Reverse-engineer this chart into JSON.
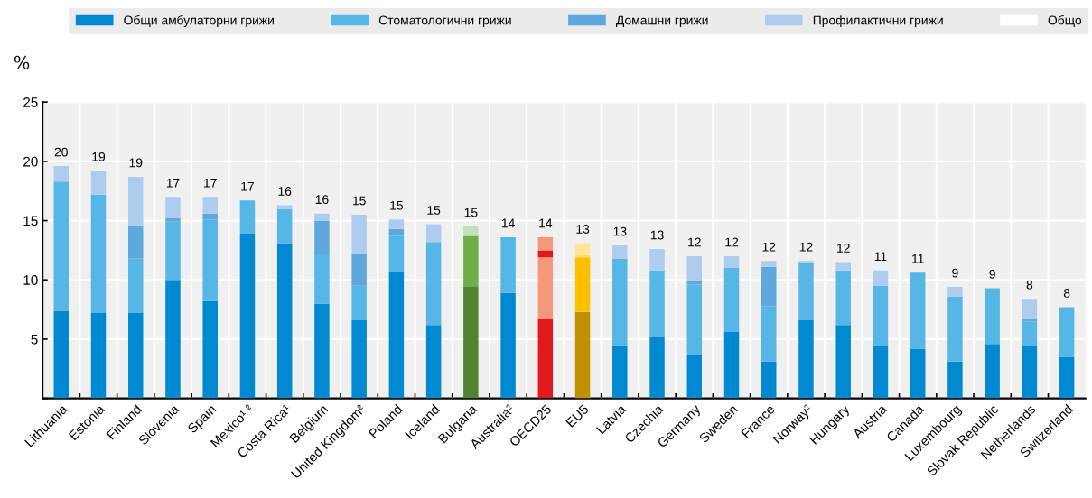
{
  "chart_data": {
    "type": "bar",
    "stacked": true,
    "ylabel": "%",
    "categories": [
      "Lithuania",
      "Estonia",
      "Finland",
      "Slovenia",
      "Spain",
      "Mexico¹ ²",
      "Costa Rica¹",
      "Belgium",
      "United Kingdom²",
      "Poland",
      "Iceland",
      "Bulgaria",
      "Australia²",
      "OECD25",
      "EU5",
      "Latvia",
      "Czechia",
      "Germany",
      "Sweden",
      "France",
      "Norway²",
      "Hungary",
      "Austria",
      "Canada",
      "Luxembourg",
      "Slovak Republic",
      "Netherlands",
      "Switzerland"
    ],
    "series": [
      {
        "name": "Общи амбулаторни грижи",
        "color": "#0088d1",
        "colors": [
          "#0088d1",
          "#0088d1",
          "#0088d1",
          "#0088d1",
          "#0088d1",
          "#0088d1",
          "#0088d1",
          "#0088d1",
          "#0088d1",
          "#0088d1",
          "#0088d1",
          "#548235",
          "#0088d1",
          "#e0191f",
          "#bf9000",
          "#0088d1",
          "#0088d1",
          "#0088d1",
          "#0088d1",
          "#0088d1",
          "#0088d1",
          "#0088d1",
          "#0088d1",
          "#0088d1",
          "#0088d1",
          "#0088d1",
          "#0088d1",
          "#0088d1"
        ],
        "values": [
          7.4,
          7.2,
          7.2,
          10.0,
          8.2,
          13.9,
          13.1,
          8.0,
          6.6,
          10.7,
          6.2,
          9.4,
          8.9,
          6.7,
          7.3,
          4.5,
          5.2,
          3.7,
          5.6,
          3.1,
          6.6,
          6.2,
          4.4,
          4.2,
          3.1,
          4.6,
          4.4,
          3.5
        ]
      },
      {
        "name": "Стоматологични грижи",
        "color": "#56b7e6",
        "colors": [
          "#56b7e6",
          "#56b7e6",
          "#56b7e6",
          "#56b7e6",
          "#56b7e6",
          "#56b7e6",
          "#56b7e6",
          "#56b7e6",
          "#56b7e6",
          "#56b7e6",
          "#56b7e6",
          "#70ad47",
          "#56b7e6",
          "#f4977a",
          "#ffc000",
          "#56b7e6",
          "#56b7e6",
          "#56b7e6",
          "#56b7e6",
          "#56b7e6",
          "#56b7e6",
          "#56b7e6",
          "#56b7e6",
          "#56b7e6",
          "#56b7e6",
          "#56b7e6",
          "#56b7e6",
          "#56b7e6"
        ],
        "values": [
          10.9,
          10.0,
          4.6,
          4.9,
          6.9,
          2.8,
          2.9,
          4.2,
          2.9,
          3.0,
          7.0,
          4.3,
          4.7,
          5.2,
          4.6,
          7.3,
          5.6,
          5.9,
          5.4,
          4.7,
          4.8,
          4.6,
          5.1,
          6.4,
          5.5,
          4.7,
          2.1,
          4.2
        ]
      },
      {
        "name": "Домашни грижи",
        "color": "#5ea8dd",
        "colors": [
          "#5ea8dd",
          "#5ea8dd",
          "#5ea8dd",
          "#5ea8dd",
          "#5ea8dd",
          "#5ea8dd",
          "#5ea8dd",
          "#5ea8dd",
          "#5ea8dd",
          "#5ea8dd",
          "#5ea8dd",
          "#5ea8dd",
          "#5ea8dd",
          "#e0191f",
          "#ffd966",
          "#5ea8dd",
          "#5ea8dd",
          "#5ea8dd",
          "#5ea8dd",
          "#5ea8dd",
          "#5ea8dd",
          "#5ea8dd",
          "#5ea8dd",
          "#5ea8dd",
          "#5ea8dd",
          "#5ea8dd",
          "#5ea8dd",
          "#5ea8dd"
        ],
        "values": [
          null,
          null,
          2.8,
          0.3,
          0.5,
          null,
          null,
          2.8,
          2.7,
          0.6,
          null,
          null,
          null,
          0.6,
          0.2,
          null,
          null,
          0.3,
          null,
          3.3,
          null,
          null,
          null,
          null,
          null,
          null,
          0.2,
          null
        ]
      },
      {
        "name": "Профилактични грижи",
        "color": "#aecdee",
        "colors": [
          "#aecdee",
          "#aecdee",
          "#aecdee",
          "#aecdee",
          "#aecdee",
          "#aecdee",
          "#aecdee",
          "#aecdee",
          "#aecdee",
          "#aecdee",
          "#aecdee",
          "#c5e0b4",
          "#aecdee",
          "#f4977a",
          "#ffe699",
          "#aecdee",
          "#aecdee",
          "#aecdee",
          "#aecdee",
          "#aecdee",
          "#aecdee",
          "#aecdee",
          "#aecdee",
          "#aecdee",
          "#aecdee",
          "#aecdee",
          "#aecdee",
          "#aecdee"
        ],
        "values": [
          1.3,
          2.0,
          4.1,
          1.8,
          1.4,
          null,
          0.3,
          0.6,
          3.3,
          0.8,
          1.5,
          0.8,
          null,
          1.1,
          1.0,
          1.1,
          1.8,
          2.1,
          1.0,
          0.5,
          0.2,
          0.7,
          1.3,
          null,
          0.8,
          null,
          1.7,
          null
        ]
      },
      {
        "name": "Общо",
        "color": "#ffffff",
        "values": [
          null,
          null,
          null,
          null,
          null,
          null,
          null,
          null,
          null,
          null,
          null,
          null,
          null,
          null,
          null,
          null,
          null,
          null,
          null,
          null,
          null,
          null,
          null,
          null,
          null,
          null,
          null,
          null
        ]
      }
    ],
    "totals": [
      "20",
      "19",
      "19",
      "17",
      "17",
      "17",
      "16",
      "16",
      "15",
      "15",
      "15",
      "15",
      "14",
      "14",
      "13",
      "13",
      "13",
      "12",
      "12",
      "12",
      "12",
      "12",
      "11",
      "11",
      "9",
      "9",
      "8",
      "8"
    ],
    "ylim": [
      0,
      25
    ],
    "yticks": [
      {
        "value": 0,
        "label": null
      },
      5,
      10,
      15,
      20,
      25
    ],
    "grid": true,
    "legend": "top"
  }
}
